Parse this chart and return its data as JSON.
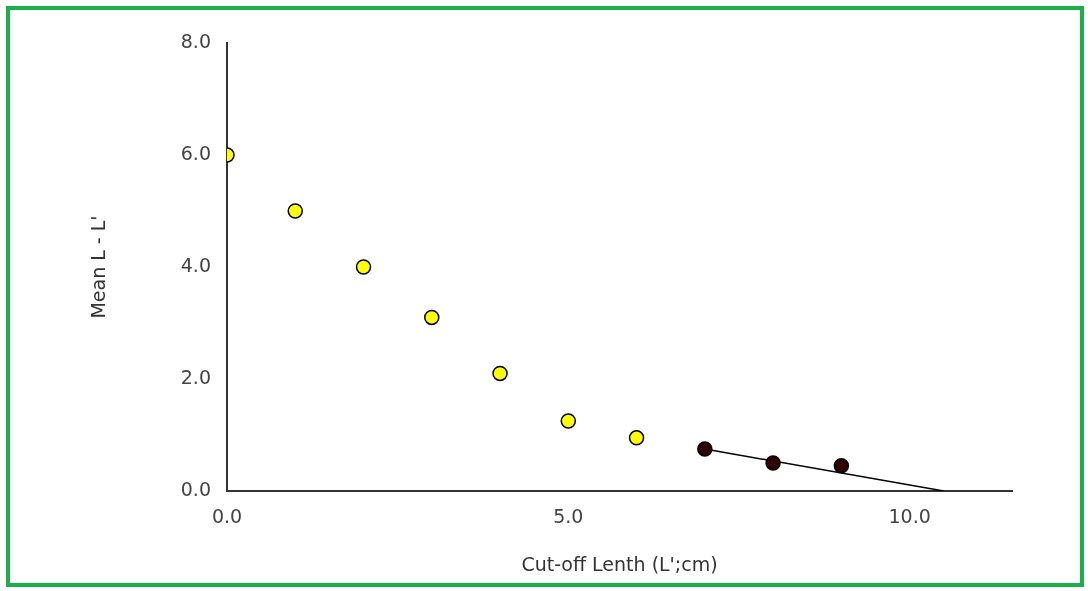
{
  "chart_data": {
    "type": "scatter",
    "xlabel": "Cut-off Lenth (L';cm)",
    "ylabel": "Mean L - L'",
    "xlim": [
      0,
      11.5
    ],
    "xticks": [
      {
        "value": 0,
        "label": "0.0"
      },
      {
        "value": 5,
        "label": "5.0"
      },
      {
        "value": 10,
        "label": "10.0"
      }
    ],
    "ylim": [
      0,
      8
    ],
    "yticks": [
      {
        "value": 0,
        "label": "0.0"
      },
      {
        "value": 2,
        "label": "2.0"
      },
      {
        "value": 4,
        "label": "4.0"
      },
      {
        "value": 6,
        "label": "6.0"
      },
      {
        "value": 8,
        "label": "8.0"
      }
    ],
    "grid": false,
    "legend": false,
    "marker": "circle",
    "series": [
      {
        "color": "#ffff00",
        "x": [
          0,
          1,
          2,
          3,
          4,
          5,
          6
        ],
        "values": [
          6.0,
          5.0,
          4.0,
          3.1,
          2.1,
          1.25,
          0.95
        ]
      },
      {
        "color": "#330000",
        "x": [
          7,
          8,
          9
        ],
        "values": [
          0.75,
          0.5,
          0.45
        ]
      },
      {
        "type": "line",
        "color": "#000000",
        "marker": "none",
        "x": [
          7,
          10.5
        ],
        "values": [
          0.75,
          0
        ]
      }
    ]
  }
}
